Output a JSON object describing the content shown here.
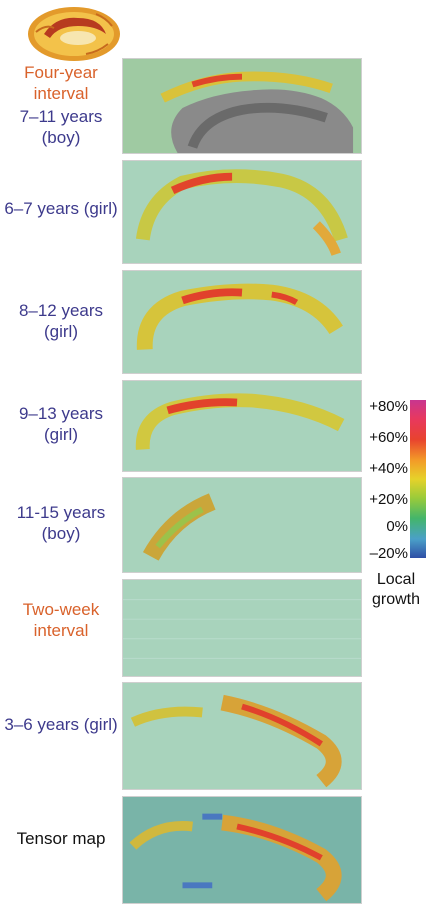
{
  "header": {
    "icon": "brain-icon",
    "title": "Four-year interval"
  },
  "panels": [
    {
      "label": "7–11 years (boy)",
      "label_color": "#3d3a8c"
    },
    {
      "label": "6–7 years (girl)",
      "label_color": "#3d3a8c"
    },
    {
      "label": "8–12 years (girl)",
      "label_color": "#3d3a8c"
    },
    {
      "label": "9–13 years (girl)",
      "label_color": "#3d3a8c"
    },
    {
      "label": "11-15 years (boy)",
      "label_color": "#3d3a8c"
    },
    {
      "label": "Two-week interval",
      "label_color": "#d9622b"
    },
    {
      "label": "3–6 years (girl)",
      "label_color": "#3d3a8c"
    },
    {
      "label": "Tensor map",
      "label_color": "#111111"
    }
  ],
  "legend": {
    "ticks": [
      "+80%",
      "+60%",
      "+40%",
      "+20%",
      "0%",
      "–20%"
    ],
    "title": "Local growth",
    "colors": [
      "#c8368f",
      "#e8432e",
      "#f39a28",
      "#e6d22a",
      "#43b56b",
      "#2f4fa6"
    ]
  }
}
